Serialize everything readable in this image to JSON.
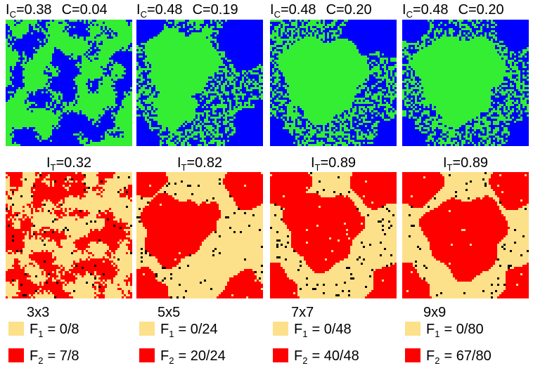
{
  "panels": [
    {
      "top_label": {
        "symbol": "I",
        "subscript": "C",
        "value": "=0.38",
        "coupling": "C=0.04"
      },
      "bottom_label": {
        "symbol": "I",
        "subscript": "T",
        "value": "=0.32"
      },
      "size": "3x3",
      "legend": [
        {
          "symbol": "F",
          "subscript": "1",
          "value": "= 0/8"
        },
        {
          "symbol": "F",
          "subscript": "2",
          "value": "= 7/8"
        }
      ]
    },
    {
      "top_label": {
        "symbol": "I",
        "subscript": "C",
        "value": "=0.48",
        "coupling": "C=0.19"
      },
      "bottom_label": {
        "symbol": "I",
        "subscript": "T",
        "value": "=0.82"
      },
      "size": "5x5",
      "legend": [
        {
          "symbol": "F",
          "subscript": "1",
          "value": "= 0/24"
        },
        {
          "symbol": "F",
          "subscript": "2",
          "value": "= 20/24"
        }
      ]
    },
    {
      "top_label": {
        "symbol": "I",
        "subscript": "C",
        "value": "=0.48",
        "coupling": "C=0.20"
      },
      "bottom_label": {
        "symbol": "I",
        "subscript": "T",
        "value": "=0.89"
      },
      "size": "7x7",
      "legend": [
        {
          "symbol": "F",
          "subscript": "1",
          "value": "= 0/48"
        },
        {
          "symbol": "F",
          "subscript": "2",
          "value": "= 40/48"
        }
      ]
    },
    {
      "top_label": {
        "symbol": "I",
        "subscript": "C",
        "value": "=0.48",
        "coupling": "C=0.20"
      },
      "bottom_label": {
        "symbol": "I",
        "subscript": "T",
        "value": "=0.89"
      },
      "size": "9x9",
      "legend": [
        {
          "symbol": "F",
          "subscript": "1",
          "value": "= 0/80"
        },
        {
          "symbol": "F",
          "subscript": "2",
          "value": "= 67/80"
        }
      ]
    }
  ]
}
